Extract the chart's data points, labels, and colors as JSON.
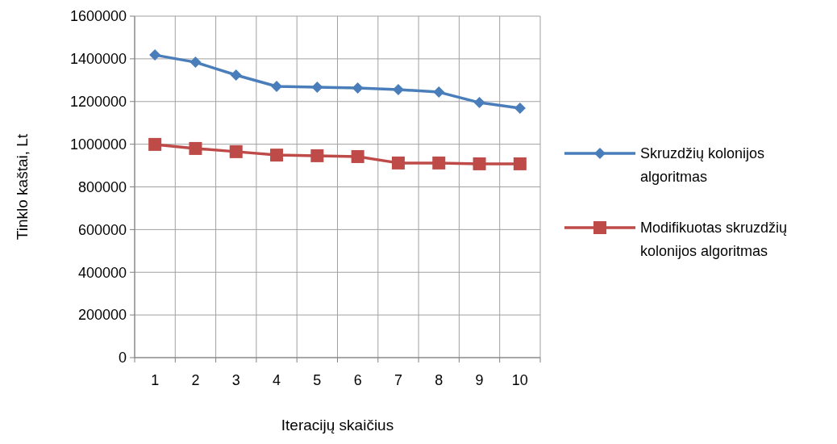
{
  "chart_data": {
    "type": "line",
    "xlabel": "Iteracijų skaičius",
    "ylabel": "Tinklo kaštai, Lt",
    "categories": [
      "1",
      "2",
      "3",
      "4",
      "5",
      "6",
      "7",
      "8",
      "9",
      "10"
    ],
    "series": [
      {
        "name": "Skruzdžių kolonijos algoritmas",
        "color": "#4a7ebb",
        "marker": "diamond",
        "values": [
          1418000,
          1384000,
          1324000,
          1271000,
          1267000,
          1263000,
          1256000,
          1244000,
          1195000,
          1169000
        ]
      },
      {
        "name": "Modifikuotas skruzdžių kolonijos algoritmas",
        "color": "#be4b48",
        "marker": "square",
        "values": [
          999000,
          980000,
          965000,
          949000,
          946000,
          942000,
          912000,
          912000,
          908000,
          908000
        ]
      }
    ],
    "ylim": [
      0,
      1600000
    ],
    "yticks": [
      0,
      200000,
      400000,
      600000,
      800000,
      1000000,
      1200000,
      1400000,
      1600000
    ],
    "grid": true,
    "legend": "right",
    "line_style": "solid"
  }
}
